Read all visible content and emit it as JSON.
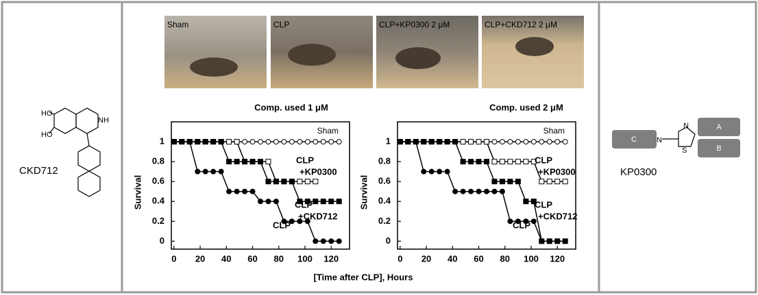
{
  "panels": {
    "left": {
      "compound_label": "CKD712",
      "structure_labels": [
        "HO",
        "HO",
        "NH"
      ]
    },
    "right": {
      "compound_label": "KP0300",
      "structure_labels": [
        "N",
        "N",
        "S",
        "A",
        "B",
        "C"
      ]
    }
  },
  "photos": [
    "Sham",
    "CLP",
    "CLP+KP0300 2 μM",
    "CLP+CKD712 2 μM"
  ],
  "shared_xlabel": "[Time after CLP], Hours",
  "chart_data": [
    {
      "type": "line",
      "title": "Comp. used 1 μM",
      "ylabel": "Survival",
      "xlim": [
        -2,
        134
      ],
      "ylim": [
        -0.08,
        1.2
      ],
      "xticks": [
        0,
        20,
        40,
        60,
        80,
        100,
        120
      ],
      "yticks": [
        0,
        0.2,
        0.4,
        0.6,
        0.8,
        1
      ],
      "series": [
        {
          "label": [
            "Sham"
          ],
          "marker": "circle",
          "filled": false,
          "color": "#000000",
          "x": [
            0,
            6,
            12,
            18,
            24,
            30,
            36,
            42,
            48,
            54,
            60,
            66,
            72,
            78,
            84,
            90,
            96,
            102,
            108,
            114,
            120,
            126
          ],
          "values": [
            1,
            1,
            1,
            1,
            1,
            1,
            1,
            1,
            1,
            1,
            1,
            1,
            1,
            1,
            1,
            1,
            1,
            1,
            1,
            1,
            1,
            1
          ]
        },
        {
          "label": [
            "CLP",
            "+KP0300"
          ],
          "marker": "square",
          "filled": false,
          "color": "#000000",
          "x": [
            0,
            6,
            12,
            18,
            24,
            30,
            36,
            42,
            48,
            54,
            60,
            66,
            72,
            78,
            84,
            90,
            96,
            102,
            108
          ],
          "values": [
            1,
            1,
            1,
            1,
            1,
            1,
            1,
            1,
            1,
            0.8,
            0.8,
            0.8,
            0.8,
            0.6,
            0.6,
            0.6,
            0.6,
            0.6,
            0.6
          ]
        },
        {
          "label": [
            "CLP",
            "+CKD712"
          ],
          "marker": "square",
          "filled": true,
          "color": "#000000",
          "x": [
            0,
            6,
            12,
            18,
            24,
            30,
            36,
            42,
            48,
            54,
            60,
            66,
            72,
            78,
            84,
            90,
            96,
            102,
            108,
            114,
            120,
            126
          ],
          "values": [
            1,
            1,
            1,
            1,
            1,
            1,
            1,
            0.8,
            0.8,
            0.8,
            0.8,
            0.8,
            0.6,
            0.6,
            0.6,
            0.6,
            0.4,
            0.4,
            0.4,
            0.4,
            0.4,
            0.4
          ]
        },
        {
          "label": [
            "CLP"
          ],
          "marker": "circle",
          "filled": true,
          "color": "#000000",
          "x": [
            0,
            6,
            12,
            18,
            24,
            30,
            36,
            42,
            48,
            54,
            60,
            66,
            72,
            78,
            84,
            90,
            96,
            102,
            108,
            114,
            120,
            126
          ],
          "values": [
            1,
            1,
            1,
            0.7,
            0.7,
            0.7,
            0.7,
            0.5,
            0.5,
            0.5,
            0.5,
            0.4,
            0.4,
            0.4,
            0.2,
            0.2,
            0.2,
            0.2,
            0,
            0,
            0,
            0
          ]
        }
      ]
    },
    {
      "type": "line",
      "title": "Comp. used 2 μM",
      "ylabel": "Survival",
      "xlim": [
        -2,
        134
      ],
      "ylim": [
        -0.08,
        1.2
      ],
      "xticks": [
        0,
        20,
        40,
        60,
        80,
        100,
        120
      ],
      "yticks": [
        0,
        0.2,
        0.4,
        0.6,
        0.8,
        1
      ],
      "series": [
        {
          "label": [
            "Sham"
          ],
          "marker": "circle",
          "filled": false,
          "color": "#000000",
          "x": [
            0,
            6,
            12,
            18,
            24,
            30,
            36,
            42,
            48,
            54,
            60,
            66,
            72,
            78,
            84,
            90,
            96,
            102,
            108,
            114,
            120,
            126
          ],
          "values": [
            1,
            1,
            1,
            1,
            1,
            1,
            1,
            1,
            1,
            1,
            1,
            1,
            1,
            1,
            1,
            1,
            1,
            1,
            1,
            1,
            1,
            1
          ]
        },
        {
          "label": [
            "CLP",
            "+KP0300"
          ],
          "marker": "square",
          "filled": false,
          "color": "#000000",
          "x": [
            0,
            6,
            12,
            18,
            24,
            30,
            36,
            42,
            48,
            54,
            60,
            66,
            72,
            78,
            84,
            90,
            96,
            102,
            108,
            114,
            120,
            126
          ],
          "values": [
            1,
            1,
            1,
            1,
            1,
            1,
            1,
            1,
            1,
            1,
            1,
            1,
            0.8,
            0.8,
            0.8,
            0.8,
            0.8,
            0.8,
            0.6,
            0.6,
            0.6,
            0.6
          ]
        },
        {
          "label": [
            "CLP",
            "+CKD712"
          ],
          "marker": "square",
          "filled": true,
          "color": "#000000",
          "x": [
            0,
            6,
            12,
            18,
            24,
            30,
            36,
            42,
            48,
            54,
            60,
            66,
            72,
            78,
            84,
            90,
            96,
            102,
            108,
            114,
            120,
            126
          ],
          "values": [
            1,
            1,
            1,
            1,
            1,
            1,
            1,
            1,
            0.8,
            0.8,
            0.8,
            0.8,
            0.6,
            0.6,
            0.6,
            0.6,
            0.4,
            0.4,
            0,
            0,
            0,
            0
          ]
        },
        {
          "label": [
            "CLP"
          ],
          "marker": "circle",
          "filled": true,
          "color": "#000000",
          "x": [
            0,
            6,
            12,
            18,
            24,
            30,
            36,
            42,
            48,
            54,
            60,
            66,
            72,
            78,
            84,
            90,
            96,
            102,
            108,
            114,
            120,
            126
          ],
          "values": [
            1,
            1,
            1,
            0.7,
            0.7,
            0.7,
            0.7,
            0.5,
            0.5,
            0.5,
            0.5,
            0.5,
            0.5,
            0.5,
            0.2,
            0.2,
            0.2,
            0.2,
            0,
            0,
            0,
            0
          ]
        }
      ]
    }
  ]
}
